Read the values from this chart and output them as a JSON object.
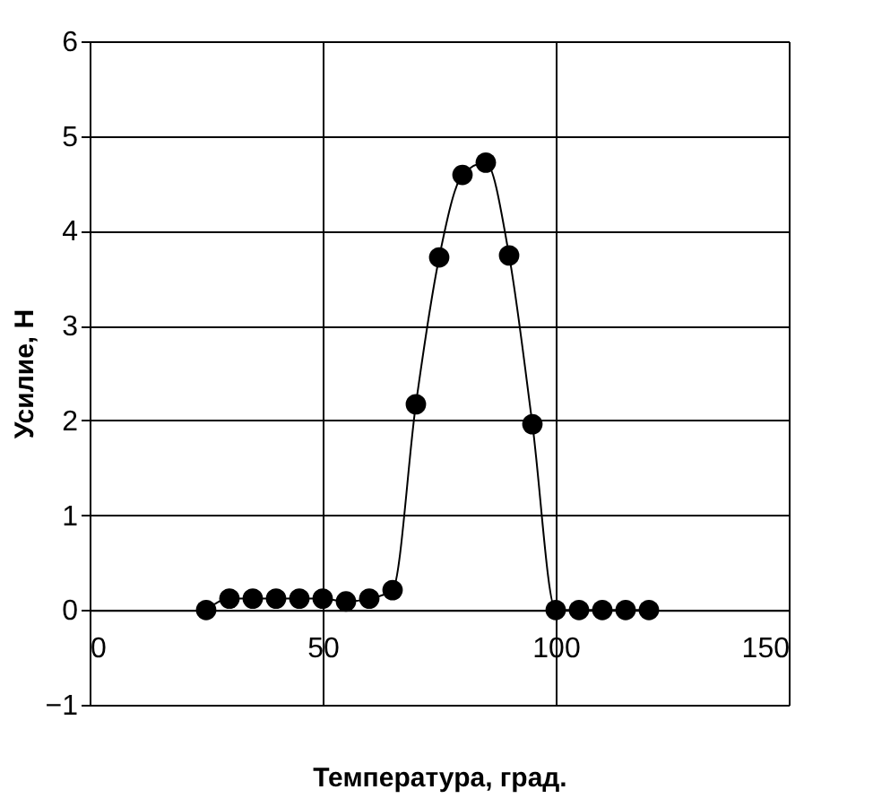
{
  "chart_data": {
    "type": "line",
    "xlabel": "Температура, град.",
    "ylabel": "Усилие, Н",
    "x": [
      25,
      30,
      35,
      40,
      45,
      50,
      55,
      60,
      65,
      70,
      75,
      80,
      85,
      90,
      95,
      100,
      105,
      110,
      115,
      120
    ],
    "series": [
      {
        "color": "#000000",
        "values": [
          0,
          0.12,
          0.12,
          0.12,
          0.12,
          0.12,
          0.09,
          0.12,
          0.21,
          2.17,
          3.72,
          4.59,
          4.72,
          3.74,
          1.96,
          0,
          0,
          0,
          0,
          0
        ]
      }
    ],
    "xlim": [
      0,
      150
    ],
    "xticks": [
      0,
      50,
      100,
      150
    ],
    "ylim": [
      -1,
      6
    ],
    "yticks": [
      -1,
      0,
      1,
      2,
      3,
      4,
      5,
      6
    ],
    "grid": true,
    "marker": "circle",
    "line_style": "solid"
  }
}
